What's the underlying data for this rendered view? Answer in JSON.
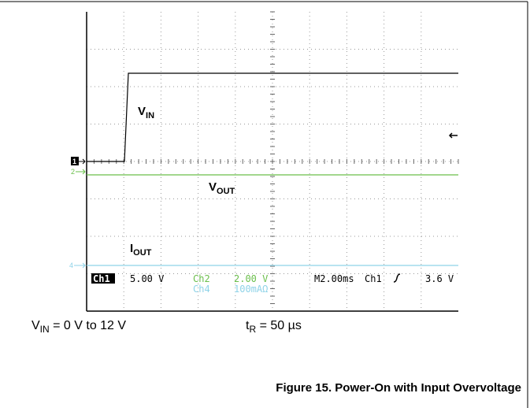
{
  "scope": {
    "traces": [
      {
        "label": "V",
        "sub": "IN",
        "marker": "1"
      },
      {
        "label": "V",
        "sub": "OUT",
        "marker": "2"
      },
      {
        "label": "I",
        "sub": "OUT",
        "marker": "4"
      }
    ],
    "readout": {
      "ch1": "Ch1",
      "ch1_scale": "5.00 V",
      "ch2": "Ch2",
      "ch2_scale": "2.00 V",
      "ch4": "Ch4",
      "ch4_scale": "100mAΩ",
      "timebase": "M2.00ms",
      "trigger_source": "Ch1",
      "trigger_level": "3.6 V"
    }
  },
  "annotations": {
    "input": {
      "main": "V",
      "sub": "IN",
      "rest": " = 0 V to 12 V"
    },
    "rise": {
      "main": "t",
      "sub": "R",
      "rest": " = 50 µs"
    }
  },
  "caption": "Figure 15. Power-On with Input Overvoltage"
}
